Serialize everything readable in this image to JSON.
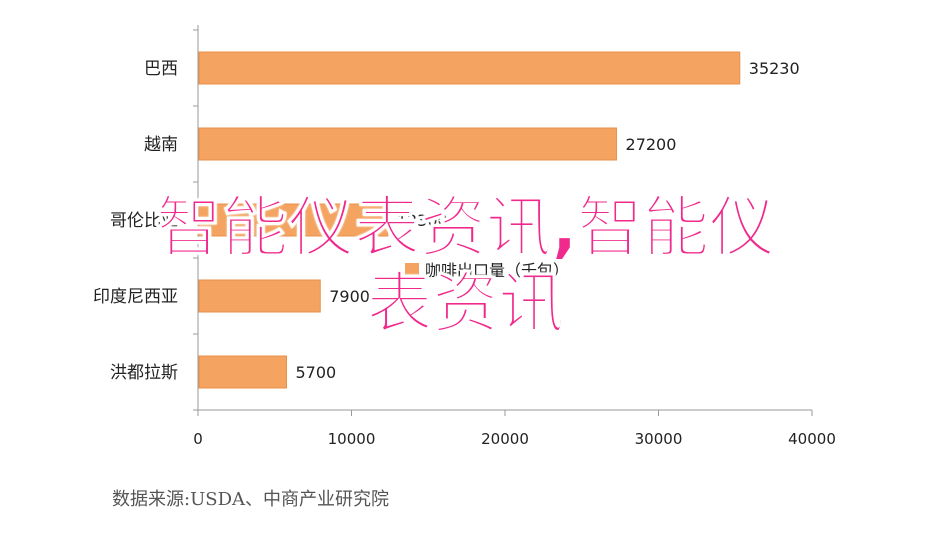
{
  "chart_data": {
    "type": "bar",
    "orientation": "horizontal",
    "categories": [
      "巴西",
      "越南",
      "哥伦比亚",
      "印度尼西亚",
      "洪都拉斯"
    ],
    "values": [
      35230,
      27200,
      12300,
      7900,
      5700
    ],
    "value_labels": [
      "35230",
      "27200",
      "12300",
      "7900",
      "5700"
    ],
    "xlim": [
      0,
      40000
    ],
    "xticks": [
      "0",
      "10000",
      "20000",
      "30000",
      "40000"
    ],
    "legend": "咖啡出口量（千包）",
    "legend_position": "center",
    "title": "",
    "xlabel": "",
    "ylabel": "",
    "grid": false,
    "bar_color": "#f4a460"
  },
  "source_text": "数据来源:USDA、中商产业研究院",
  "watermark_line1": "智能仪表资讯,智能仪",
  "watermark_line2": "表资讯",
  "colors": {
    "bar": "#f4a460",
    "bar_edge": "#e8914a",
    "watermark": "#f0298c"
  }
}
